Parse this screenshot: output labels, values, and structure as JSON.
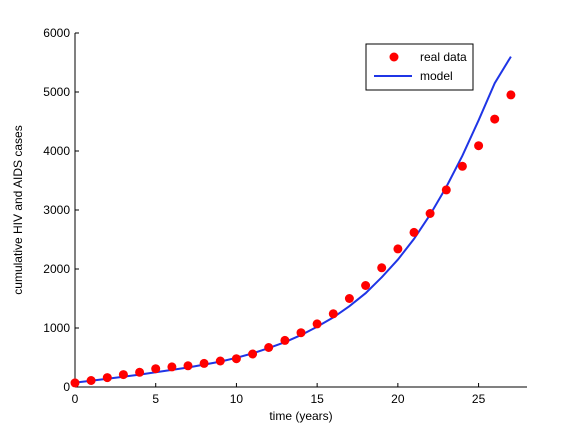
{
  "chart_data": {
    "type": "scatter",
    "title": "",
    "xlabel": "time (years)",
    "ylabel": "cumulative HIV and AIDS cases",
    "xlim": [
      0,
      28
    ],
    "ylim": [
      0,
      6000
    ],
    "xticks": [
      0,
      5,
      10,
      15,
      20,
      25
    ],
    "yticks": [
      0,
      1000,
      2000,
      3000,
      4000,
      5000,
      6000
    ],
    "grid": false,
    "legend_position": "top-right",
    "colors": {
      "real_data": "#ff0000",
      "model": "#1f35e6",
      "axis": "#000000"
    },
    "series": [
      {
        "name": "real data",
        "kind": "marker",
        "x": [
          0,
          1,
          2,
          3,
          4,
          5,
          6,
          7,
          8,
          9,
          10,
          11,
          12,
          13,
          14,
          15,
          16,
          17,
          18,
          19,
          20,
          21,
          22,
          23,
          24,
          25,
          26,
          27
        ],
        "y": [
          70,
          110,
          160,
          210,
          250,
          310,
          340,
          360,
          400,
          440,
          480,
          560,
          670,
          790,
          920,
          1070,
          1240,
          1500,
          1720,
          2020,
          2340,
          2620,
          2940,
          3340,
          3740,
          4090,
          4540,
          4950
        ]
      },
      {
        "name": "model",
        "kind": "line",
        "x": [
          0,
          1,
          2,
          3,
          4,
          5,
          6,
          7,
          8,
          9,
          10,
          11,
          12,
          13,
          14,
          15,
          16,
          17,
          18,
          19,
          20,
          21,
          22,
          23,
          24,
          25,
          26,
          27
        ],
        "y": [
          75,
          105,
          140,
          175,
          210,
          250,
          290,
          330,
          380,
          430,
          495,
          570,
          660,
          760,
          880,
          1020,
          1180,
          1370,
          1590,
          1860,
          2160,
          2510,
          2920,
          3390,
          3920,
          4520,
          5150,
          5600
        ]
      }
    ]
  }
}
